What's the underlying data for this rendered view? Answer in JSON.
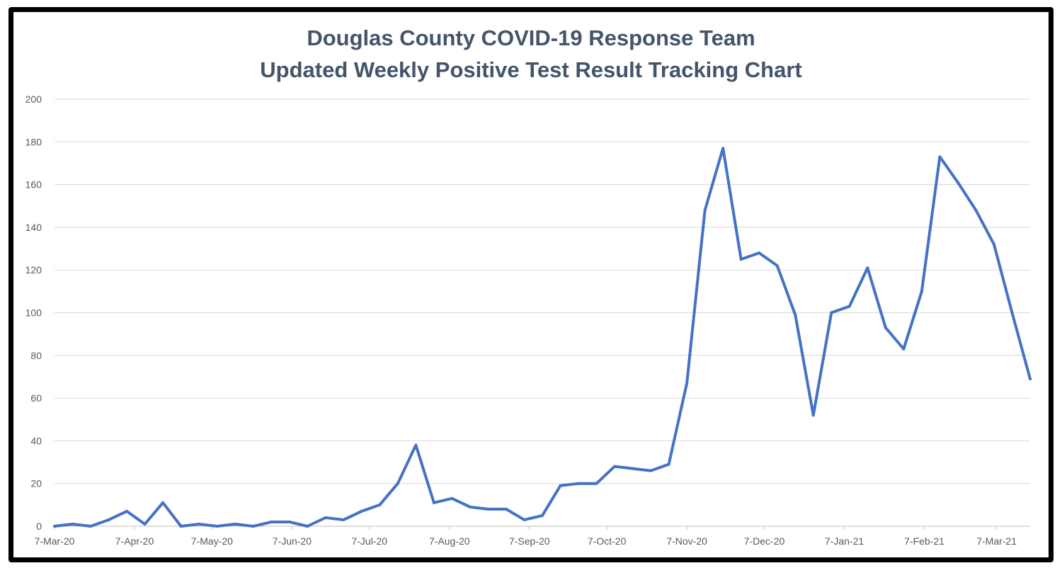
{
  "chart_data": {
    "type": "line",
    "title": "Douglas County COVID-19 Response Team",
    "subtitle": "Updated Weekly Positive Test Result Tracking Chart",
    "xlabel": "",
    "ylabel": "",
    "ylim": [
      0,
      200
    ],
    "yticks": [
      0,
      20,
      40,
      60,
      80,
      100,
      120,
      140,
      160,
      180,
      200
    ],
    "xtick_labels": [
      "7-Mar-20",
      "7-Apr-20",
      "7-May-20",
      "7-Jun-20",
      "7-Jul-20",
      "7-Aug-20",
      "7-Sep-20",
      "7-Oct-20",
      "7-Nov-20",
      "7-Dec-20",
      "7-Jan-21",
      "7-Feb-21",
      "7-Mar-21"
    ],
    "xtick_days": [
      0,
      31,
      61,
      92,
      122,
      153,
      184,
      214,
      245,
      275,
      306,
      337,
      365
    ],
    "grid": true,
    "legend": "none",
    "series": [
      {
        "name": "Weekly positive tests",
        "color": "#4472c4",
        "interval_days": 7,
        "values": [
          0,
          1,
          0,
          3,
          7,
          1,
          11,
          0,
          1,
          0,
          1,
          0,
          2,
          2,
          0,
          4,
          3,
          7,
          10,
          20,
          38,
          11,
          13,
          9,
          8,
          8,
          3,
          5,
          19,
          20,
          20,
          28,
          27,
          26,
          29,
          67,
          148,
          177,
          125,
          128,
          122,
          99,
          52,
          100,
          103,
          121,
          93,
          83,
          110,
          173,
          161,
          148,
          132,
          100,
          69
        ]
      }
    ]
  }
}
